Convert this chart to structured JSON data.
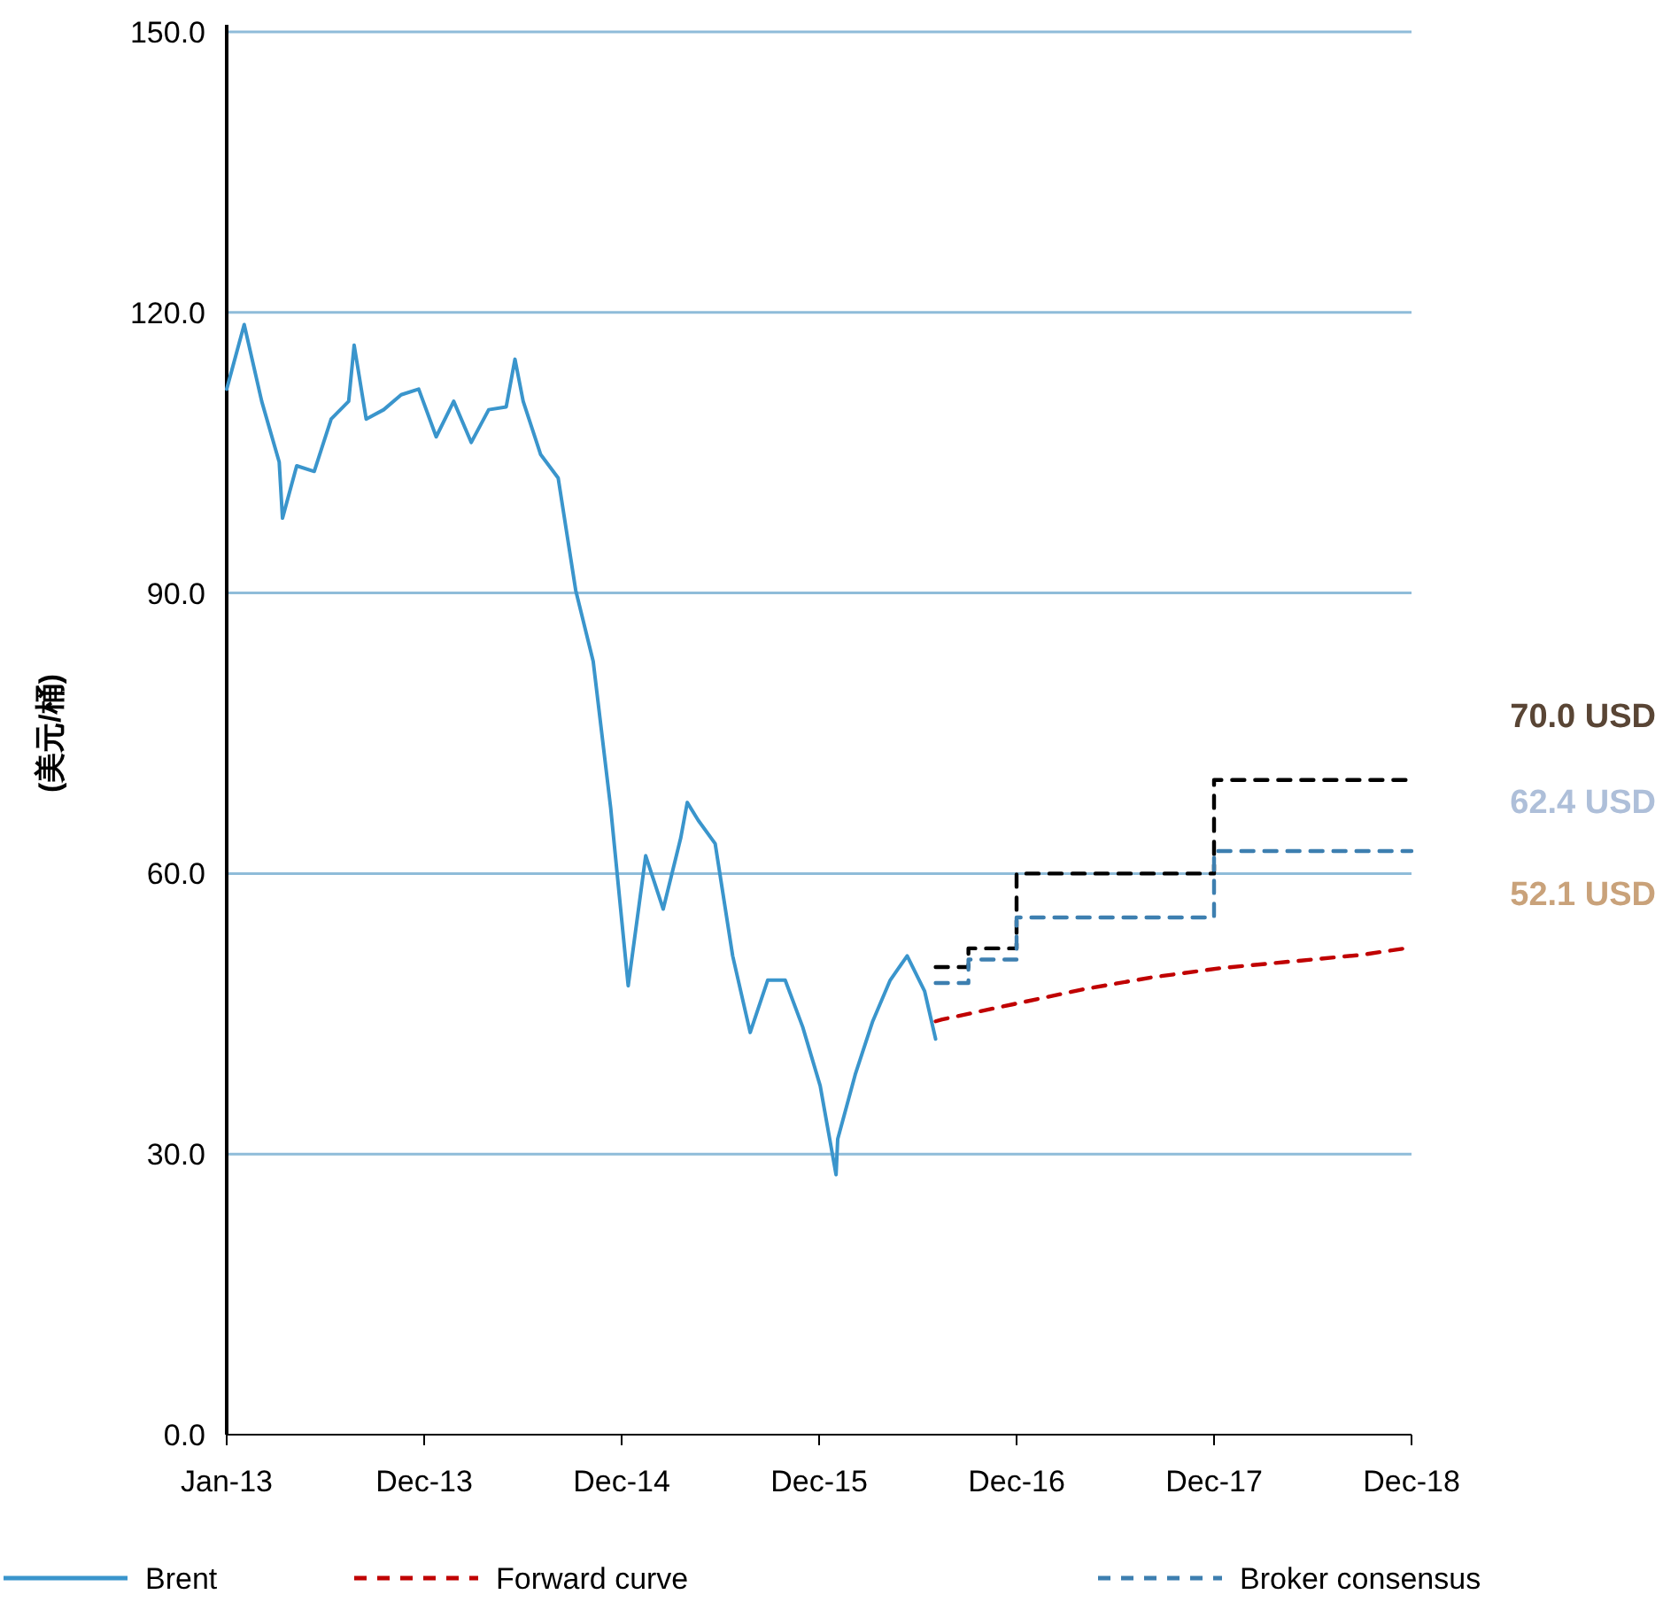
{
  "chart_data": {
    "type": "line",
    "ylabel": "(美元/桶)",
    "xlim": [
      "2013-01-01",
      "2018-12-07"
    ],
    "xticks": [
      {
        "value": "2013-01-01",
        "label": "Jan-13"
      },
      {
        "value": "2013-12-28",
        "label": "Dec-13"
      },
      {
        "value": "2014-12-24",
        "label": "Dec-14"
      },
      {
        "value": "2015-12-20",
        "label": "Dec-15"
      },
      {
        "value": "2016-12-15",
        "label": "Dec-16"
      },
      {
        "value": "2017-12-11",
        "label": "Dec-17"
      },
      {
        "value": "2018-12-07",
        "label": "Dec-18"
      }
    ],
    "ylim": [
      0,
      150
    ],
    "yticks": [
      {
        "value": 0,
        "label": "0.0"
      },
      {
        "value": 30,
        "label": "30.0"
      },
      {
        "value": 60,
        "label": "60.0"
      },
      {
        "value": 90,
        "label": "90.0"
      },
      {
        "value": 120,
        "label": "120.0"
      },
      {
        "value": 150,
        "label": "150.0"
      }
    ],
    "grid": "y",
    "legend": "bottom",
    "series": [
      {
        "name": "Brent",
        "type": "line",
        "line_style": "solid",
        "color": "#3a95cc",
        "x": [
          "2013-01-01",
          "2013-02-02",
          "2013-03-06",
          "2013-04-07",
          "2013-04-13",
          "2013-05-09",
          "2013-06-10",
          "2013-07-11",
          "2013-08-12",
          "2013-08-22",
          "2013-09-13",
          "2013-10-15",
          "2013-11-16",
          "2013-12-18",
          "2014-01-19",
          "2014-02-20",
          "2014-03-24",
          "2014-04-25",
          "2014-05-27",
          "2014-06-12",
          "2014-06-27",
          "2014-07-29",
          "2014-08-30",
          "2014-10-01",
          "2014-11-02",
          "2014-12-04",
          "2015-01-05",
          "2015-02-06",
          "2015-03-10",
          "2015-04-11",
          "2015-04-23",
          "2015-05-13",
          "2015-06-13",
          "2015-07-15",
          "2015-08-16",
          "2015-09-17",
          "2015-10-19",
          "2015-11-20",
          "2015-12-22",
          "2016-01-20",
          "2016-01-23",
          "2016-02-24",
          "2016-03-27",
          "2016-04-28",
          "2016-05-29",
          "2016-06-30",
          "2016-07-20"
        ],
        "values": [
          111.8,
          118.7,
          110.5,
          104,
          98,
          103.6,
          103,
          108.6,
          110.5,
          116.5,
          108.6,
          109.6,
          111.2,
          111.8,
          106.7,
          110.5,
          106.1,
          109.6,
          109.9,
          115,
          110.5,
          104.8,
          102.3,
          90.3,
          82.7,
          67,
          48,
          61.9,
          56.2,
          63.8,
          67.6,
          65.7,
          63.2,
          51.2,
          43,
          48.6,
          48.6,
          43.6,
          37.3,
          27.8,
          31.6,
          38.5,
          44.2,
          48.6,
          51.2,
          47.4,
          42.3
        ]
      },
      {
        "name": "Forward curve",
        "type": "line",
        "line_style": "dashed",
        "color": "#c00000",
        "x": [
          "2016-07-20",
          "2016-08-01",
          "2016-12-07",
          "2017-04-14",
          "2017-08-19",
          "2017-12-25",
          "2018-05-02",
          "2018-09-06",
          "2018-12-07"
        ],
        "values": [
          44.2,
          44.4,
          46,
          47.6,
          48.9,
          49.9,
          50.6,
          51.3,
          52.1
        ]
      },
      {
        "type": "step",
        "line_style": "dashed",
        "color": "#000000",
        "x": [
          "2016-07-20",
          "2016-09-18",
          "2016-12-15",
          "2017-12-11",
          "2018-12-07"
        ],
        "values": [
          50,
          52,
          60,
          70,
          70
        ]
      },
      {
        "name": "Broker consensus",
        "type": "step",
        "line_style": "dashed",
        "color": "#3d7fb0",
        "x": [
          "2016-07-20",
          "2016-09-18",
          "2016-12-15",
          "2017-12-11",
          "2018-12-07"
        ],
        "values": [
          48.3,
          50.8,
          55.3,
          62.4,
          62.4
        ]
      }
    ],
    "annotations": [
      "70.0 USD",
      "62.4 USD",
      "52.1 USD"
    ]
  }
}
